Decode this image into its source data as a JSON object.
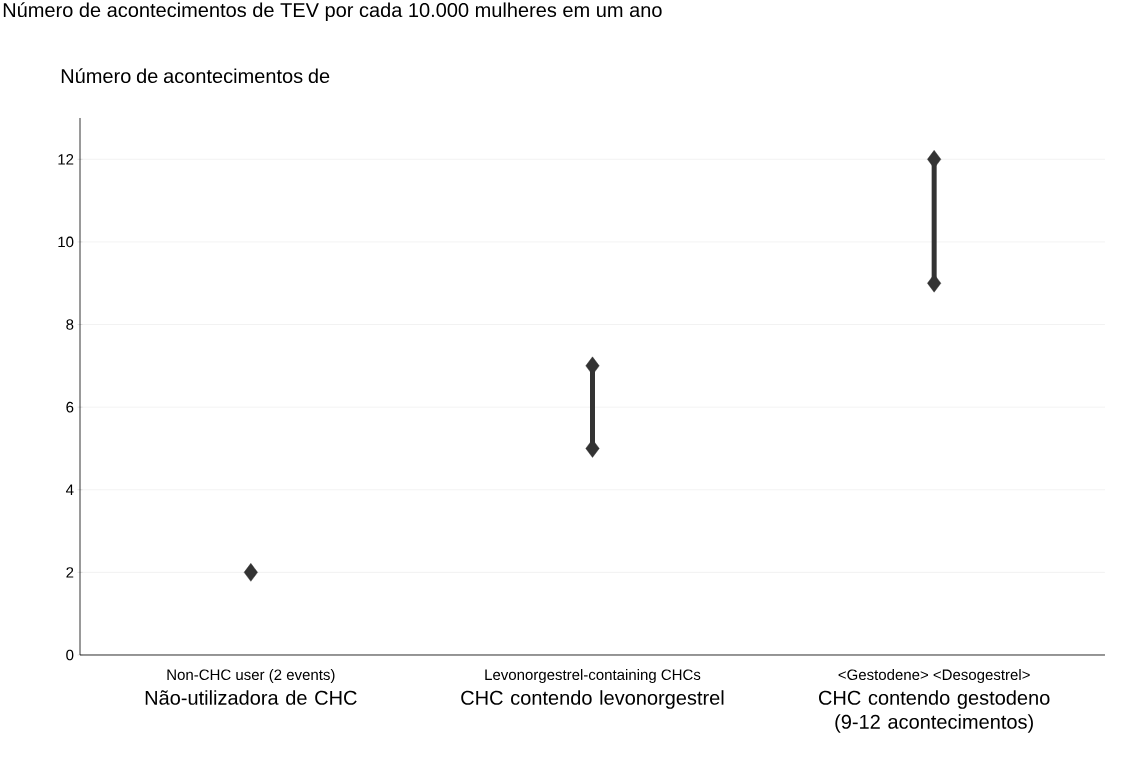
{
  "chart_data": {
    "type": "line",
    "title": "Número de acontecimentos de TEV por cada 10.000 mulheres em um ano",
    "ylabel": "Número de acontecimentos de",
    "categories": [
      "Non-CHC user (2 events)",
      "Levonorgestrel-containing CHCs",
      "<Gestodene> <Desogestrel>"
    ],
    "series": [
      {
        "type": "scatter",
        "color": "#333333",
        "x": [
          "Non-CHC user (2 events)"
        ],
        "values": [
          2
        ]
      },
      {
        "color": "#333333",
        "x": [
          "Levonorgestrel-containing CHCs",
          "Levonorgestrel-containing CHCs"
        ],
        "values": [
          5,
          7
        ]
      },
      {
        "color": "#333333",
        "x": [
          "<Gestodene> <Desogestrel>",
          "<Gestodene> <Desogestrel>"
        ],
        "values": [
          9,
          12
        ]
      }
    ],
    "marker": "diamond",
    "ylim": [
      0,
      13
    ],
    "yticks": [
      0,
      2,
      4,
      6,
      8,
      10,
      12
    ],
    "grid": "y",
    "annotations": [
      "Não-utilizadora de CHC",
      "CHC contendo levonorgestrel",
      "CHC contendo gestodeno (9-12 acontecimentos)"
    ]
  }
}
